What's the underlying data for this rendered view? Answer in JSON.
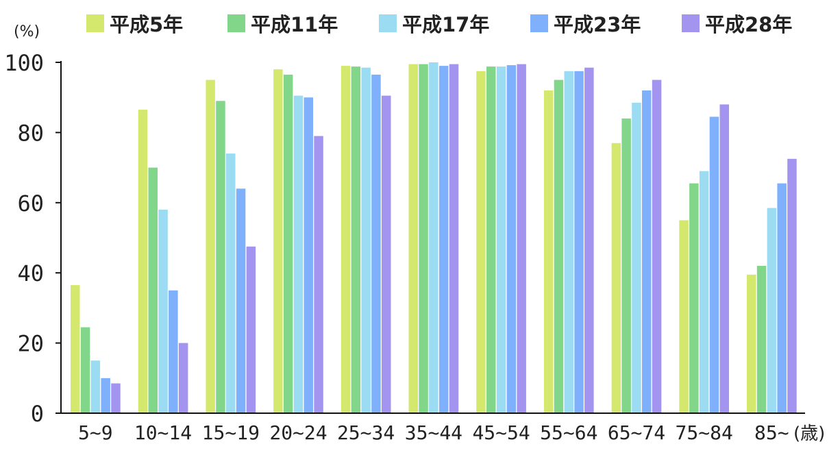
{
  "chart_data": {
    "type": "bar",
    "categories": [
      "5~9",
      "10~14",
      "15~19",
      "20~24",
      "25~34",
      "35~44",
      "45~54",
      "55~64",
      "65~74",
      "75~84",
      "85~"
    ],
    "series": [
      {
        "name": "平成5年",
        "color": "#d4e86e",
        "values": [
          36.5,
          86.5,
          95,
          98,
          99,
          99.5,
          97.5,
          92,
          77,
          55,
          39.5
        ]
      },
      {
        "name": "平成11年",
        "color": "#82d68a",
        "values": [
          24.5,
          70,
          89,
          96.5,
          98.8,
          99.5,
          98.8,
          95,
          84,
          65.5,
          42
        ]
      },
      {
        "name": "平成17年",
        "color": "#9bdcf2",
        "values": [
          15,
          58,
          74,
          90.5,
          98.5,
          100,
          98.8,
          97.5,
          88.5,
          69,
          58.5
        ]
      },
      {
        "name": "平成23年",
        "color": "#7fb0fb",
        "values": [
          10,
          35,
          64,
          90,
          96.5,
          99,
          99.2,
          97.5,
          92,
          84.5,
          65.5
        ]
      },
      {
        "name": "平成28年",
        "color": "#a394ef",
        "values": [
          8.5,
          20,
          47.5,
          79,
          90.5,
          99.5,
          99.5,
          98.5,
          95,
          88,
          72.5
        ]
      }
    ],
    "ylim": [
      0,
      100
    ],
    "yticks": [
      "0",
      "20",
      "40",
      "60",
      "80",
      "100"
    ],
    "ylabel": "(%)",
    "xlabel": "(歳)",
    "legend_position": "top",
    "grid": false
  }
}
